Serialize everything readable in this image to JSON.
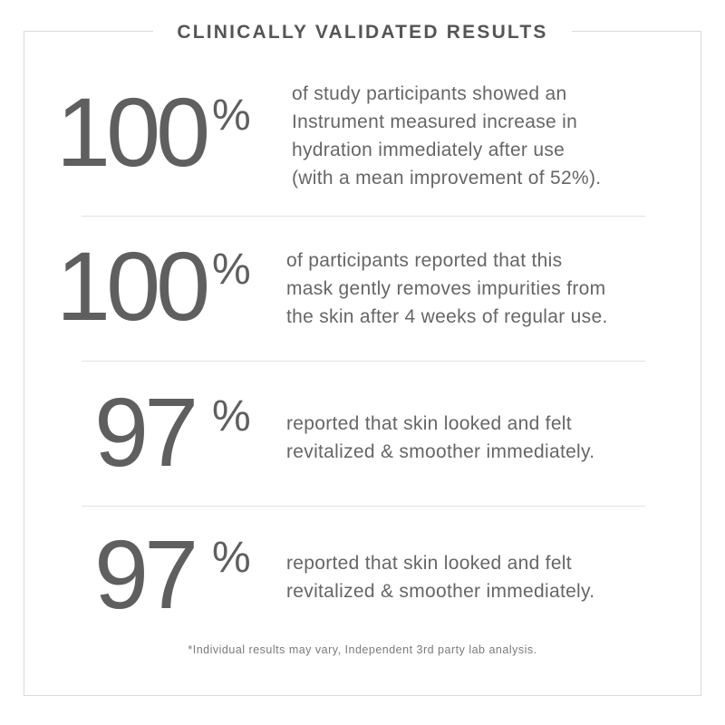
{
  "title": "CLINICALLY VALIDATED RESULTS",
  "stats": [
    {
      "value": "100",
      "unit": "%",
      "description": "of study participants showed an\nInstrument measured increase in\nhydration immediately after use\n(with a mean improvement of 52%)."
    },
    {
      "value": "100",
      "unit": "%",
      "description": "of participants reported that this\nmask gently removes impurities from\nthe skin after 4 weeks of regular use."
    },
    {
      "value": "97",
      "unit": "%",
      "description": "reported that skin looked and felt\nrevitalized & smoother immediately."
    },
    {
      "value": "97",
      "unit": "%",
      "description": "reported that skin looked and felt\nrevitalized & smoother immediately."
    }
  ],
  "footnote": "*Individual results may vary, Independent 3rd party lab analysis."
}
